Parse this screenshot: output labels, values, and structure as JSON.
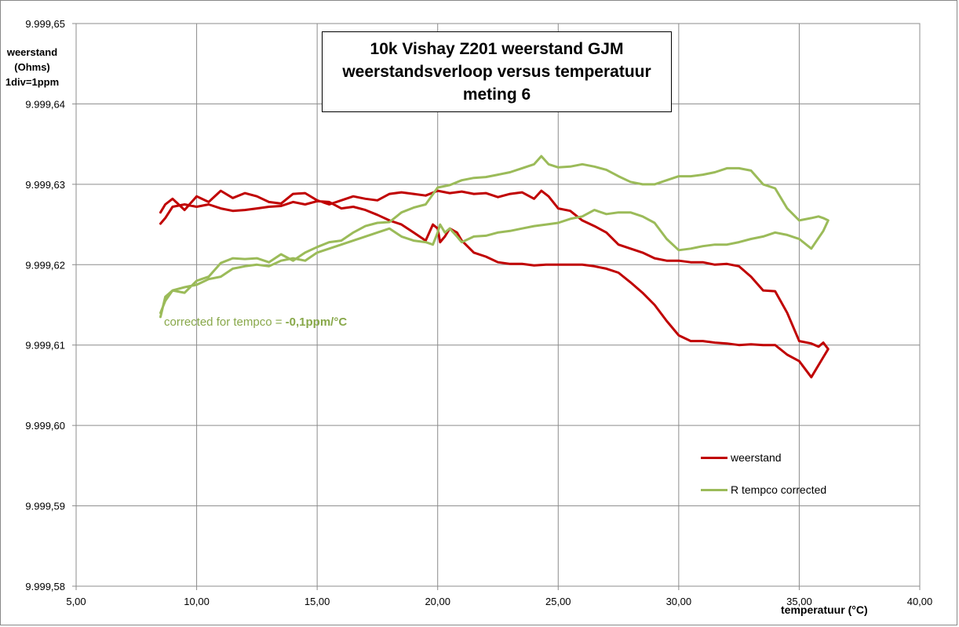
{
  "chart_data": {
    "type": "line",
    "title": [
      "10k Vishay  Z201 weerstand GJM",
      "weerstandsverloop versus temperatuur",
      "meting 6"
    ],
    "ylabel": [
      "weerstand",
      "(Ohms)",
      "1div=1ppm"
    ],
    "xlabel": "temperatuur (°C)",
    "xlim": [
      5,
      40
    ],
    "ylim": [
      9999.58,
      9999.65
    ],
    "xticks": [
      5,
      10,
      15,
      20,
      25,
      30,
      35,
      40
    ],
    "xtick_labels": [
      "5,00",
      "10,00",
      "15,00",
      "20,00",
      "25,00",
      "30,00",
      "35,00",
      "40,00"
    ],
    "yticks": [
      9999.58,
      9999.59,
      9999.6,
      9999.61,
      9999.62,
      9999.63,
      9999.64,
      9999.65
    ],
    "ytick_labels": [
      "9.999,58",
      "9.999,59",
      "9.999,60",
      "9.999,61",
      "9.999,62",
      "9.999,63",
      "9.999,64",
      "9.999,65"
    ],
    "grid": true,
    "legend_placement": "right",
    "annotation": {
      "prefix": "corrected for tempco = ",
      "value": "-0,1ppm/°C"
    },
    "series": [
      {
        "name": "weerstand",
        "color": "#c00000",
        "x": [
          8.5,
          8.7,
          9.0,
          9.5,
          10.0,
          10.5,
          11.0,
          11.5,
          12.0,
          12.5,
          13.0,
          13.5,
          14.0,
          14.5,
          15.0,
          15.5,
          16.0,
          16.5,
          17.0,
          17.5,
          18.0,
          18.5,
          19.0,
          19.5,
          20.0,
          20.5,
          21.0,
          21.5,
          22.0,
          22.5,
          23.0,
          23.5,
          24.0,
          24.3,
          24.6,
          25.0,
          25.5,
          26.0,
          26.5,
          27.0,
          27.5,
          28.0,
          28.5,
          29.0,
          29.5,
          30.0,
          30.5,
          31.0,
          31.5,
          32.0,
          32.5,
          33.0,
          33.5,
          34.0,
          34.5,
          35.0,
          35.5,
          35.8,
          36.0,
          36.2,
          36.0,
          35.5,
          35.0,
          34.5,
          34.0,
          33.5,
          33.0,
          32.5,
          32.0,
          31.5,
          31.0,
          30.5,
          30.0,
          29.5,
          29.0,
          28.5,
          28.0,
          27.5,
          27.0,
          26.5,
          26.0,
          25.5,
          25.0,
          24.5,
          24.0,
          23.5,
          23.0,
          22.5,
          22.0,
          21.5,
          21.0,
          20.8,
          20.5,
          20.3,
          20.1,
          20.0,
          19.8,
          19.5,
          19.0,
          18.5,
          18.0,
          17.5,
          17.0,
          16.5,
          16.0,
          15.5,
          15.0,
          14.5,
          14.0,
          13.5,
          13.0,
          12.5,
          12.0,
          11.5,
          11.0,
          10.5,
          10.0,
          9.5,
          9.0,
          8.7,
          8.5
        ],
        "y": [
          9999.6265,
          9999.6275,
          9999.6282,
          9999.6268,
          9999.6285,
          9999.6278,
          9999.6292,
          9999.6283,
          9999.6289,
          9999.6285,
          9999.6278,
          9999.6276,
          9999.6288,
          9999.6289,
          9999.628,
          9999.6275,
          9999.628,
          9999.6285,
          9999.6282,
          9999.628,
          9999.6288,
          9999.629,
          9999.6288,
          9999.6286,
          9999.6292,
          9999.6289,
          9999.6291,
          9999.6288,
          9999.6289,
          9999.6284,
          9999.6288,
          9999.629,
          9999.6282,
          9999.6292,
          9999.6285,
          9999.627,
          9999.6267,
          9999.6255,
          9999.6248,
          9999.624,
          9999.6225,
          9999.622,
          9999.6215,
          9999.6208,
          9999.6205,
          9999.6205,
          9999.6203,
          9999.6203,
          9999.62,
          9999.6201,
          9999.6198,
          9999.6185,
          9999.6168,
          9999.6167,
          9999.614,
          9999.6105,
          9999.6102,
          9999.6098,
          9999.6103,
          9999.6095,
          9999.6085,
          9999.606,
          9999.608,
          9999.6088,
          9999.61,
          9999.61,
          9999.6101,
          9999.61,
          9999.6102,
          9999.6103,
          9999.6105,
          9999.6105,
          9999.6112,
          9999.613,
          9999.615,
          9999.6165,
          9999.6178,
          9999.619,
          9999.6195,
          9999.6198,
          9999.62,
          9999.62,
          9999.62,
          9999.62,
          9999.6199,
          9999.6201,
          9999.6201,
          9999.6203,
          9999.621,
          9999.6215,
          9999.623,
          9999.624,
          9999.6245,
          9999.6235,
          9999.6228,
          9999.6245,
          9999.625,
          9999.623,
          9999.624,
          9999.625,
          9999.6255,
          9999.6262,
          9999.6268,
          9999.6272,
          9999.627,
          9999.6278,
          9999.6279,
          9999.6275,
          9999.6278,
          9999.6273,
          9999.6272,
          9999.627,
          9999.6268,
          9999.6267,
          9999.627,
          9999.6275,
          9999.6272,
          9999.6275,
          9999.6272,
          9999.6258,
          9999.6251
        ]
      },
      {
        "name": "R tempco  corrected",
        "color": "#9bbb59",
        "x": [
          8.5,
          8.7,
          9.0,
          9.5,
          10.0,
          10.5,
          11.0,
          11.5,
          12.0,
          12.5,
          13.0,
          13.5,
          14.0,
          14.5,
          15.0,
          15.5,
          16.0,
          16.5,
          17.0,
          17.5,
          18.0,
          18.5,
          19.0,
          19.5,
          20.0,
          20.5,
          21.0,
          21.5,
          22.0,
          22.5,
          23.0,
          23.5,
          24.0,
          24.3,
          24.6,
          25.0,
          25.5,
          26.0,
          26.5,
          27.0,
          27.5,
          28.0,
          28.5,
          29.0,
          29.5,
          30.0,
          30.5,
          31.0,
          31.5,
          32.0,
          32.5,
          33.0,
          33.5,
          34.0,
          34.5,
          35.0,
          35.5,
          35.8,
          36.0,
          36.2,
          36.0,
          35.5,
          35.0,
          34.5,
          34.0,
          33.5,
          33.0,
          32.5,
          32.0,
          31.5,
          31.0,
          30.5,
          30.0,
          29.5,
          29.0,
          28.5,
          28.0,
          27.5,
          27.0,
          26.5,
          26.0,
          25.5,
          25.0,
          24.5,
          24.0,
          23.5,
          23.0,
          22.5,
          22.0,
          21.5,
          21.0,
          20.8,
          20.5,
          20.3,
          20.1,
          20.0,
          19.8,
          19.5,
          19.0,
          18.5,
          18.0,
          17.5,
          17.0,
          16.5,
          16.0,
          15.5,
          15.0,
          14.5,
          14.0,
          13.5,
          13.0,
          12.5,
          12.0,
          11.5,
          11.0,
          10.5,
          10.0,
          9.5,
          9.0,
          8.7,
          8.5
        ],
        "y": [
          9999.6135,
          9999.616,
          9999.6168,
          9999.6165,
          9999.618,
          9999.6185,
          9999.6202,
          9999.6208,
          9999.6207,
          9999.6208,
          9999.6203,
          9999.6213,
          9999.6205,
          9999.6215,
          9999.6222,
          9999.6228,
          9999.623,
          9999.624,
          9999.6248,
          9999.6252,
          9999.6253,
          9999.6265,
          9999.6271,
          9999.6275,
          9999.6296,
          9999.6299,
          9999.6305,
          9999.6308,
          9999.6309,
          9999.6312,
          9999.6315,
          9999.632,
          9999.6325,
          9999.6335,
          9999.6325,
          9999.6321,
          9999.6322,
          9999.6325,
          9999.6322,
          9999.6318,
          9999.631,
          9999.6303,
          9999.63,
          9999.63,
          9999.6305,
          9999.631,
          9999.631,
          9999.6312,
          9999.6315,
          9999.632,
          9999.632,
          9999.6317,
          9999.63,
          9999.6295,
          9999.627,
          9999.6255,
          9999.6258,
          9999.626,
          9999.6258,
          9999.6255,
          9999.6242,
          9999.622,
          9999.6232,
          9999.6237,
          9999.624,
          9999.6235,
          9999.6232,
          9999.6228,
          9999.6225,
          9999.6225,
          9999.6223,
          9999.622,
          9999.6218,
          9999.6232,
          9999.6252,
          9999.626,
          9999.6265,
          9999.6265,
          9999.6263,
          9999.6268,
          9999.626,
          9999.6257,
          9999.6252,
          9999.625,
          9999.6248,
          9999.6245,
          9999.6242,
          9999.624,
          9999.6236,
          9999.6235,
          9999.6228,
          9999.6235,
          9999.6245,
          9999.624,
          9999.625,
          9999.624,
          9999.6225,
          9999.6228,
          9999.623,
          9999.6235,
          9999.6245,
          9999.624,
          9999.6235,
          9999.623,
          9999.6225,
          9999.622,
          9999.6215,
          9999.6205,
          9999.6208,
          9999.6205,
          9999.6198,
          9999.62,
          9999.6198,
          9999.6195,
          9999.6185,
          9999.6182,
          9999.6175,
          9999.6172,
          9999.6168,
          9999.6155,
          9999.614
        ]
      }
    ]
  }
}
